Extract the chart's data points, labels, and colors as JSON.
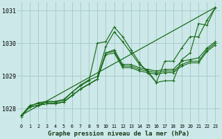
{
  "xlabel": "Graphe pression niveau de la mer (hPa)",
  "bg_color": "#cce8e8",
  "grid_color": "#aacccc",
  "line_color": "#1a6b1a",
  "x_ticks": [
    0,
    1,
    2,
    3,
    4,
    5,
    6,
    7,
    8,
    9,
    10,
    11,
    12,
    13,
    14,
    15,
    16,
    17,
    18,
    19,
    20,
    21,
    22,
    23
  ],
  "ylim": [
    1027.55,
    1031.25
  ],
  "yticks": [
    1028,
    1029,
    1030,
    1031
  ],
  "series": [
    [
      1027.8,
      1028.1,
      1028.15,
      1028.2,
      1028.2,
      1028.25,
      1028.5,
      1028.7,
      1028.85,
      1030.0,
      1030.05,
      1030.5,
      1030.2,
      1029.8,
      1029.4,
      1029.1,
      1028.8,
      1028.85,
      1028.85,
      1029.5,
      1029.7,
      1030.6,
      1030.55,
      1031.1
    ],
    [
      1027.8,
      1028.05,
      1028.1,
      1028.15,
      1028.15,
      1028.2,
      1028.4,
      1028.6,
      1028.75,
      1028.9,
      1029.7,
      1029.8,
      1029.35,
      1029.35,
      1029.25,
      1029.2,
      1029.15,
      1029.2,
      1029.2,
      1029.45,
      1029.5,
      1029.55,
      1029.85,
      1030.05
    ],
    [
      1027.8,
      1028.05,
      1028.1,
      1028.15,
      1028.15,
      1028.2,
      1028.4,
      1028.6,
      1028.75,
      1028.9,
      1029.7,
      1029.75,
      1029.3,
      1029.3,
      1029.2,
      1029.15,
      1029.1,
      1029.15,
      1029.15,
      1029.35,
      1029.45,
      1029.45,
      1029.8,
      1030.0
    ],
    [
      1027.8,
      1028.05,
      1028.1,
      1028.15,
      1028.15,
      1028.2,
      1028.4,
      1028.6,
      1028.75,
      1028.9,
      1029.65,
      1029.7,
      1029.25,
      1029.25,
      1029.15,
      1029.1,
      1029.05,
      1029.1,
      1029.1,
      1029.3,
      1029.4,
      1029.4,
      1029.75,
      1029.95
    ],
    [
      1027.75,
      1028.08,
      1028.18,
      1028.22,
      1028.22,
      1028.28,
      1028.5,
      1028.72,
      1028.88,
      1028.98,
      1029.9,
      1030.35,
      1030.05,
      1029.7,
      1029.35,
      1029.15,
      1028.8,
      1029.45,
      1029.45,
      1029.85,
      1030.2,
      1030.2,
      1030.7,
      1031.1
    ]
  ]
}
